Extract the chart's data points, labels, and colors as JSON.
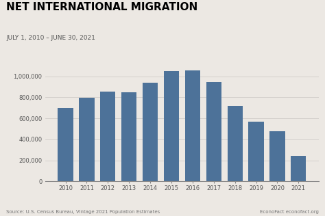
{
  "title": "NET INTERNATIONAL MIGRATION",
  "subtitle": "JULY 1, 2010 – JUNE 30, 2021",
  "source": "Source: U.S. Census Bureau, Vintage 2021 Population Estimates",
  "credit": "EconoFact econofact.org",
  "years": [
    2010,
    2011,
    2012,
    2013,
    2014,
    2015,
    2016,
    2017,
    2018,
    2019,
    2020,
    2021
  ],
  "values": [
    700000,
    795000,
    855000,
    845000,
    940000,
    1050000,
    1055000,
    945000,
    720000,
    565000,
    475000,
    245000
  ],
  "bar_color": "#4d7299",
  "background_color": "#ece8e3",
  "ylim": [
    0,
    1150000
  ],
  "yticks": [
    0,
    200000,
    400000,
    600000,
    800000,
    1000000
  ],
  "grid_color": "#d0ccc8",
  "title_fontsize": 11,
  "subtitle_fontsize": 6.5,
  "tick_fontsize": 6,
  "source_fontsize": 5
}
